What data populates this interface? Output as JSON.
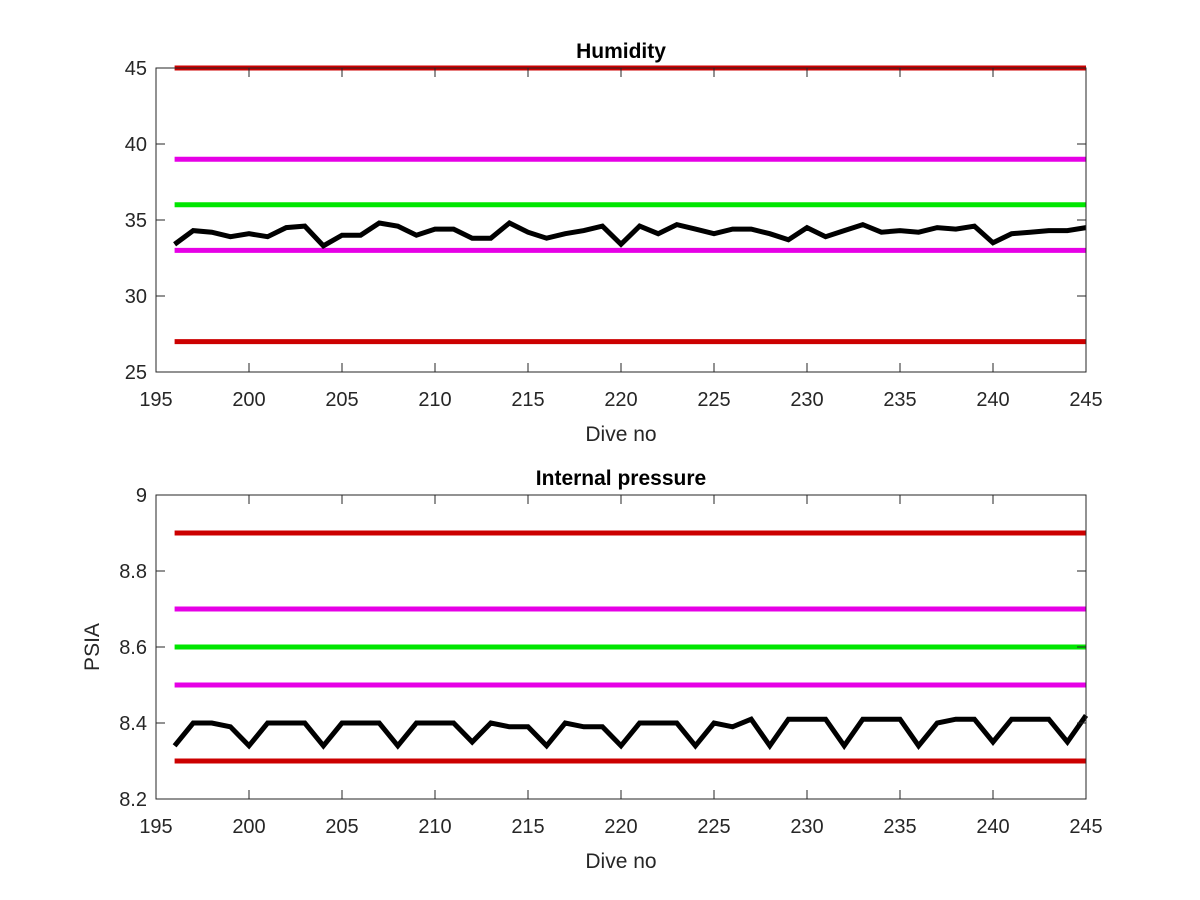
{
  "chart_data": [
    {
      "type": "line",
      "title": "Humidity",
      "xlabel": "Dive no",
      "ylabel": "",
      "xlim": [
        195,
        245
      ],
      "ylim": [
        25,
        45
      ],
      "xticks": [
        195,
        200,
        205,
        210,
        215,
        220,
        225,
        230,
        235,
        240,
        245
      ],
      "yticks": [
        25,
        30,
        35,
        40,
        45
      ],
      "grid": false,
      "reference_lines": [
        {
          "y": 45,
          "color": "#cc0000"
        },
        {
          "y": 39,
          "color": "#e600e6"
        },
        {
          "y": 36,
          "color": "#00e600"
        },
        {
          "y": 33,
          "color": "#e600e6"
        },
        {
          "y": 27,
          "color": "#cc0000"
        }
      ],
      "series": [
        {
          "color": "#000000",
          "x": [
            196,
            197,
            198,
            199,
            200,
            201,
            202,
            203,
            204,
            205,
            206,
            207,
            208,
            209,
            210,
            211,
            212,
            213,
            214,
            215,
            216,
            217,
            218,
            219,
            220,
            221,
            222,
            223,
            224,
            225,
            226,
            227,
            228,
            229,
            230,
            231,
            232,
            233,
            234,
            235,
            236,
            237,
            238,
            239,
            240,
            241,
            242,
            243,
            244,
            245
          ],
          "y": [
            33.4,
            34.3,
            34.2,
            33.9,
            34.1,
            33.9,
            34.5,
            34.6,
            33.3,
            34.0,
            34.0,
            34.8,
            34.6,
            34.0,
            34.4,
            34.4,
            33.8,
            33.8,
            34.8,
            34.2,
            33.8,
            34.1,
            34.3,
            34.6,
            33.4,
            34.6,
            34.1,
            34.7,
            34.4,
            34.1,
            34.4,
            34.4,
            34.1,
            33.7,
            34.5,
            33.9,
            34.3,
            34.7,
            34.2,
            34.3,
            34.2,
            34.5,
            34.4,
            34.6,
            33.5,
            34.1,
            34.2,
            34.3,
            34.3,
            34.5
          ]
        }
      ]
    },
    {
      "type": "line",
      "title": "Internal pressure",
      "xlabel": "Dive no",
      "ylabel": "PSIA",
      "xlim": [
        195,
        245
      ],
      "ylim": [
        8.2,
        9.0
      ],
      "xticks": [
        195,
        200,
        205,
        210,
        215,
        220,
        225,
        230,
        235,
        240,
        245
      ],
      "yticks": [
        8.2,
        8.4,
        8.6,
        8.8,
        9.0
      ],
      "ytick_labels": [
        "8.2",
        "8.4",
        "8.6",
        "8.8",
        "9"
      ],
      "grid": false,
      "reference_lines": [
        {
          "y": 8.9,
          "color": "#cc0000"
        },
        {
          "y": 8.7,
          "color": "#e600e6"
        },
        {
          "y": 8.6,
          "color": "#00e600"
        },
        {
          "y": 8.5,
          "color": "#e600e6"
        },
        {
          "y": 8.3,
          "color": "#cc0000"
        }
      ],
      "series": [
        {
          "color": "#000000",
          "x": [
            196,
            197,
            198,
            199,
            200,
            201,
            202,
            203,
            204,
            205,
            206,
            207,
            208,
            209,
            210,
            211,
            212,
            213,
            214,
            215,
            216,
            217,
            218,
            219,
            220,
            221,
            222,
            223,
            224,
            225,
            226,
            227,
            228,
            229,
            230,
            231,
            232,
            233,
            234,
            235,
            236,
            237,
            238,
            239,
            240,
            241,
            242,
            243,
            244,
            245
          ],
          "y": [
            8.34,
            8.4,
            8.4,
            8.39,
            8.34,
            8.4,
            8.4,
            8.4,
            8.34,
            8.4,
            8.4,
            8.4,
            8.34,
            8.4,
            8.4,
            8.4,
            8.35,
            8.4,
            8.39,
            8.39,
            8.34,
            8.4,
            8.39,
            8.39,
            8.34,
            8.4,
            8.4,
            8.4,
            8.34,
            8.4,
            8.39,
            8.41,
            8.34,
            8.41,
            8.41,
            8.41,
            8.34,
            8.41,
            8.41,
            8.41,
            8.34,
            8.4,
            8.41,
            8.41,
            8.35,
            8.41,
            8.41,
            8.41,
            8.35,
            8.42
          ]
        }
      ]
    }
  ]
}
